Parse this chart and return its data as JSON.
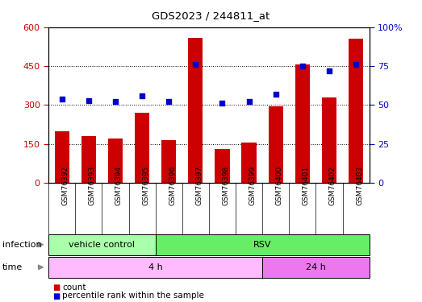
{
  "title": "GDS2023 / 244811_at",
  "samples": [
    "GSM76392",
    "GSM76393",
    "GSM76394",
    "GSM76395",
    "GSM76396",
    "GSM76397",
    "GSM76398",
    "GSM76399",
    "GSM76400",
    "GSM76401",
    "GSM76402",
    "GSM76403"
  ],
  "counts": [
    200,
    180,
    170,
    270,
    165,
    560,
    130,
    155,
    295,
    455,
    330,
    555
  ],
  "percentile_ranks": [
    54,
    53,
    52,
    56,
    52,
    76,
    51,
    52,
    57,
    75,
    72,
    76
  ],
  "bar_color": "#cc0000",
  "dot_color": "#0000cc",
  "ylim_left": [
    0,
    600
  ],
  "ylim_right": [
    0,
    100
  ],
  "yticks_left": [
    0,
    150,
    300,
    450,
    600
  ],
  "yticks_right": [
    0,
    25,
    50,
    75,
    100
  ],
  "infection_labels": [
    {
      "text": "vehicle control",
      "start": 0,
      "end": 4,
      "color": "#aaffaa"
    },
    {
      "text": "RSV",
      "start": 4,
      "end": 12,
      "color": "#66ee66"
    }
  ],
  "time_labels": [
    {
      "text": "4 h",
      "start": 0,
      "end": 8,
      "color": "#ffbbff"
    },
    {
      "text": "24 h",
      "start": 8,
      "end": 12,
      "color": "#ee77ee"
    }
  ],
  "legend_count_label": "count",
  "legend_pct_label": "percentile rank within the sample",
  "bar_color_legend": "#cc0000",
  "dot_color_legend": "#0000cc",
  "grid_color": "#000000",
  "bg_color": "#ffffff",
  "plot_bg_color": "#ffffff",
  "tick_label_color_left": "#cc0000",
  "tick_label_color_right": "#0000cc",
  "xtick_bg_color": "#cccccc",
  "arrow_color": "#888888"
}
